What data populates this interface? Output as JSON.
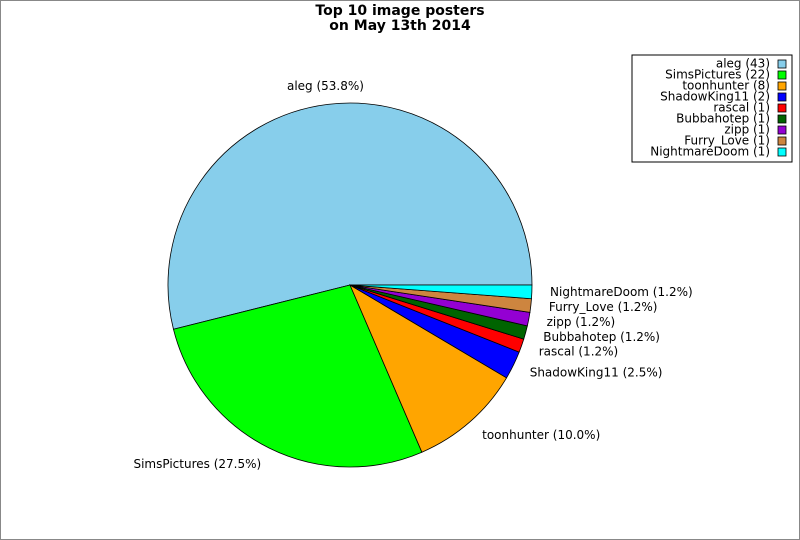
{
  "chart_data": {
    "type": "pie",
    "title": "Top 10 image posters",
    "subtitle": "on May 13th 2014",
    "categories": [
      "aleg",
      "SimsPictures",
      "toonhunter",
      "ShadowKing11",
      "rascal",
      "Bubbahotep",
      "zipp",
      "Furry_Love",
      "NightmareDoom"
    ],
    "values": [
      53.8,
      27.5,
      10.0,
      2.5,
      1.2,
      1.2,
      1.2,
      1.2,
      1.2
    ],
    "value_labels": [
      "aleg (53.8%)",
      "SimsPictures (27.5%)",
      "toonhunter (10.0%)",
      "ShadowKing11 (2.5%)",
      "rascal (1.2%)",
      "Bubbahotep (1.2%)",
      "zipp (1.2%)",
      "Furry_Love (1.2%)",
      "NightmareDoom (1.2%)"
    ],
    "legend_labels": [
      "aleg (43)",
      "SimsPictures (22)",
      "toonhunter (8)",
      "ShadowKing11 (2)",
      "rascal (1)",
      "Bubbahotep (1)",
      "zipp (1)",
      "Furry_Love (1)",
      "NightmareDoom (1)"
    ],
    "colors": [
      "#87ceeb",
      "#00ff00",
      "#ffa500",
      "#0000ff",
      "#ff0000",
      "#006400",
      "#9400d3",
      "#cd853f",
      "#00ffff"
    ],
    "legend": "upper right"
  }
}
